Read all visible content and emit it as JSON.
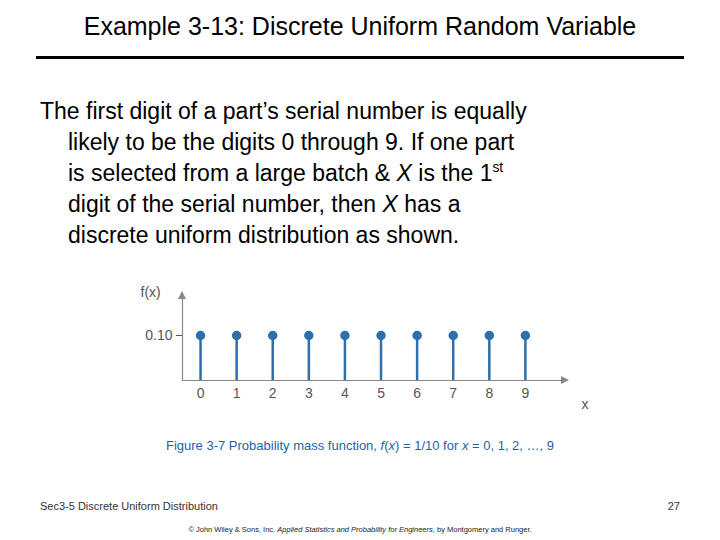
{
  "slide": {
    "title": "Example 3-13: Discrete Uniform Random Variable",
    "body_lines": [
      [
        {
          "text": "The first digit of a part’s serial number is equally"
        }
      ],
      [
        {
          "text": "likely to be the digits 0 through 9.  If one part"
        }
      ],
      [
        {
          "text": "is selected from a large batch & "
        },
        {
          "text": "X",
          "italic": true
        },
        {
          "text": " is the 1"
        },
        {
          "text": "st",
          "sup": true
        }
      ],
      [
        {
          "text": "digit of the serial number, then "
        },
        {
          "text": "X",
          "italic": true
        },
        {
          "text": " has a"
        }
      ],
      [
        {
          "text": "discrete uniform distribution as shown."
        }
      ]
    ],
    "caption": [
      {
        "text": "Figure 3-7  Probability mass function, "
      },
      {
        "text": "f",
        "italic": true
      },
      {
        "text": "("
      },
      {
        "text": "x",
        "italic": true
      },
      {
        "text": ") = 1/10 for "
      },
      {
        "text": "x",
        "italic": true
      },
      {
        "text": " = 0, 1, 2, …, 9"
      }
    ],
    "footer": "Sec3-5 Discrete Uniform Distribution",
    "page": "27",
    "copyright": [
      {
        "text": "© John Wiley & Sons, Inc.  "
      },
      {
        "text": "Applied Statistics and Probability for Engineers",
        "italic": true
      },
      {
        "text": ", by Montgomery and Runger."
      }
    ]
  },
  "chart_data": {
    "type": "stem",
    "x": [
      0,
      1,
      2,
      3,
      4,
      5,
      6,
      7,
      8,
      9
    ],
    "values": [
      0.1,
      0.1,
      0.1,
      0.1,
      0.1,
      0.1,
      0.1,
      0.1,
      0.1,
      0.1
    ],
    "color": "#2e6fac",
    "marker": "circle",
    "xlabel": "x",
    "ylabel": "f(x)",
    "xlim": [
      -0.5,
      10
    ],
    "xticks": [
      0,
      1,
      2,
      3,
      4,
      5,
      6,
      7,
      8,
      9
    ],
    "ylim": [
      0,
      0.18
    ],
    "yticks": [
      0.1
    ]
  }
}
